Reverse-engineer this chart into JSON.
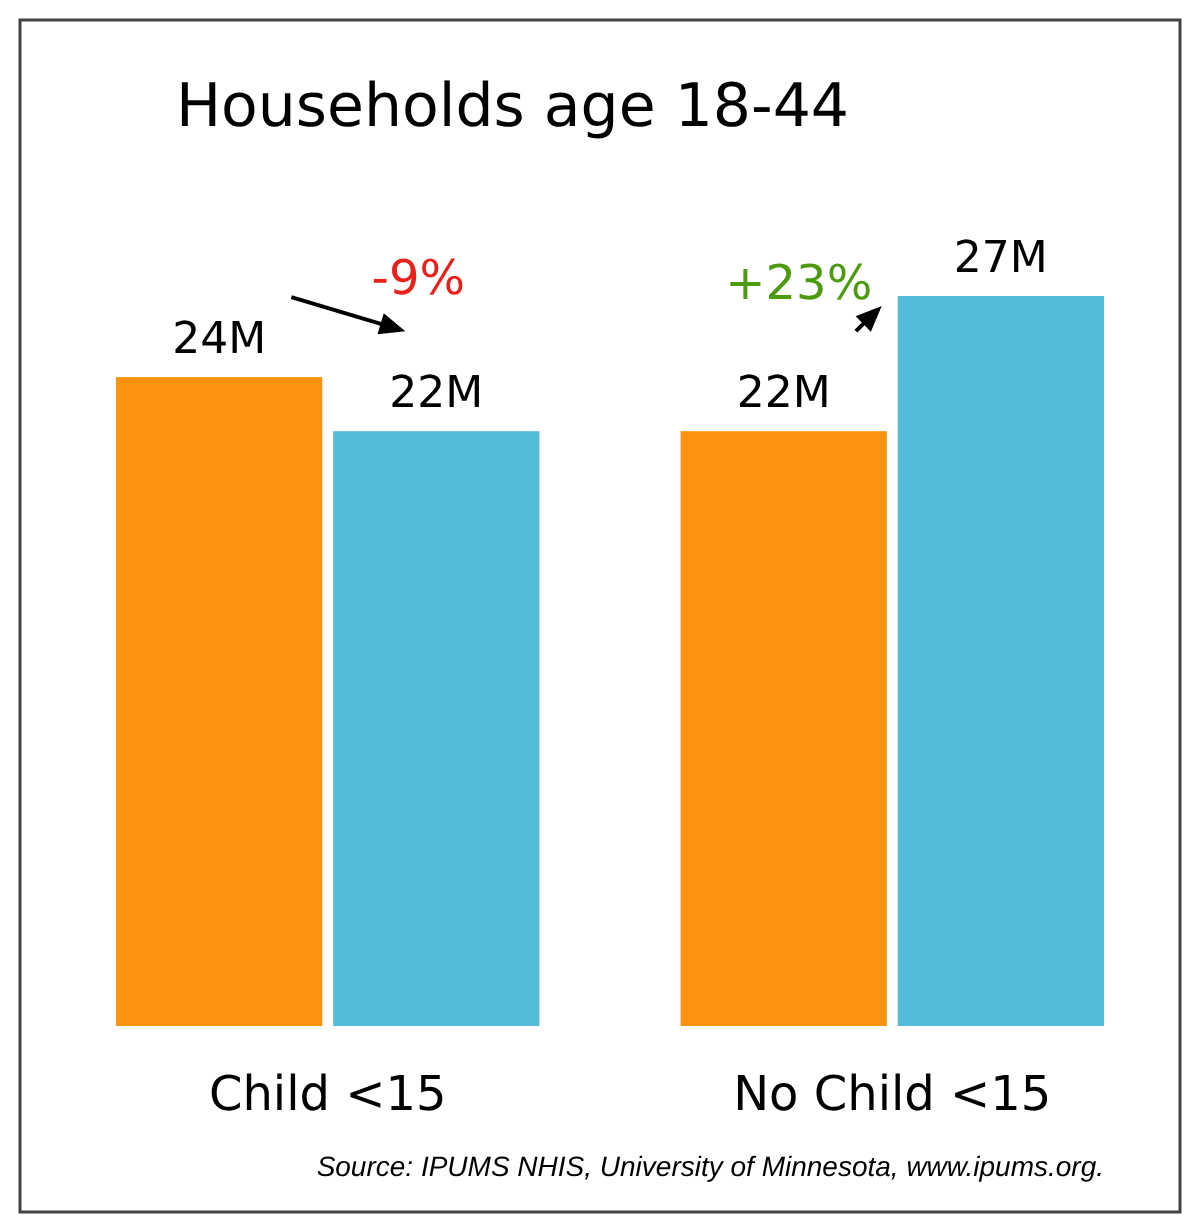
{
  "chart_data": {
    "type": "bar",
    "title": "Households age 18-44",
    "categories": [
      "Child <15",
      "No Child <15"
    ],
    "series": [
      {
        "color": "#fb9311",
        "values": [
          24,
          22
        ],
        "value_labels": [
          "24M",
          "22M"
        ]
      },
      {
        "color": "#52bcd9",
        "values": [
          22,
          27
        ],
        "value_labels": [
          "22M",
          "27M"
        ]
      }
    ],
    "annotations": [
      "-9%",
      "+23%",
      "Source: IPUMS NHIS, University of Minnesota, www.ipums.org."
    ],
    "grid": false
  }
}
